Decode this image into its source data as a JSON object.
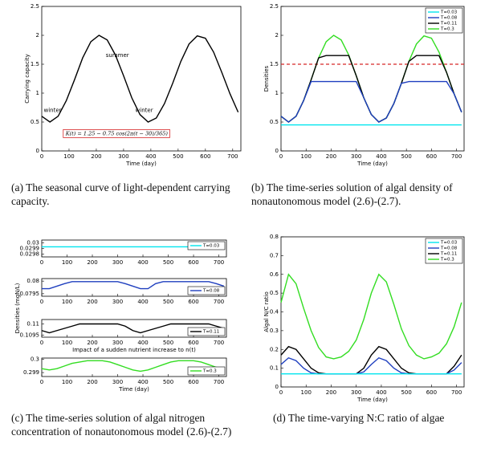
{
  "chart_data": [
    {
      "type": "line",
      "caption": "(a) The seasonal curve of light-dependent carrying capacity.",
      "xlabel": "Time (day)",
      "ylabel": "Carrying capacity",
      "xlim": [
        0,
        730
      ],
      "xticks": [
        0,
        100,
        200,
        300,
        400,
        500,
        600,
        700
      ],
      "ylim": [
        0,
        2.5
      ],
      "yticks": [
        0,
        0.5,
        1,
        1.5,
        2,
        2.5
      ],
      "annotations": [
        "summer",
        "winter",
        "winter",
        "K(t) = 1.25 − 0.75 cos(2π(t − 30)/365)"
      ],
      "x": [
        0,
        30,
        60,
        90,
        120,
        150,
        180,
        210,
        240,
        270,
        300,
        330,
        360,
        390,
        420,
        450,
        480,
        510,
        540,
        570,
        600,
        630,
        660,
        690,
        720
      ],
      "series": [
        {
          "name": "K(t)",
          "color": "#000000",
          "values": [
            0.6,
            0.5,
            0.6,
            0.87,
            1.23,
            1.61,
            1.89,
            2,
            1.92,
            1.66,
            1.3,
            0.92,
            0.63,
            0.5,
            0.57,
            0.82,
            1.17,
            1.55,
            1.85,
            1.99,
            1.95,
            1.71,
            1.36,
            0.99,
            0.67
          ]
        }
      ]
    },
    {
      "type": "line",
      "caption": "(b) The time-series solution of algal density of nonautonomous model (2.6)-(2.7).",
      "xlabel": "Time (day)",
      "ylabel": "Densities",
      "xlim": [
        0,
        730
      ],
      "xticks": [
        0,
        100,
        200,
        300,
        400,
        500,
        600,
        700
      ],
      "ylim": [
        0,
        2.5
      ],
      "yticks": [
        0,
        0.5,
        1,
        1.5,
        2,
        2.5
      ],
      "legend": "upper right",
      "reference_line": {
        "value": 1.5,
        "color": "#d62728"
      },
      "x": [
        0,
        30,
        60,
        90,
        120,
        150,
        180,
        210,
        240,
        270,
        300,
        330,
        360,
        390,
        420,
        450,
        480,
        510,
        540,
        570,
        600,
        630,
        660,
        690,
        720
      ],
      "series": [
        {
          "name": "T=0.03",
          "color": "#00e5ee",
          "values": [
            0.45,
            0.45,
            0.45,
            0.45,
            0.45,
            0.45,
            0.45,
            0.45,
            0.45,
            0.45,
            0.45,
            0.45,
            0.45,
            0.45,
            0.45,
            0.45,
            0.45,
            0.45,
            0.45,
            0.45,
            0.45,
            0.45,
            0.45,
            0.45,
            0.45
          ]
        },
        {
          "name": "T=0.08",
          "color": "#1f3fbf",
          "values": [
            0.6,
            0.5,
            0.6,
            0.87,
            1.2,
            1.2,
            1.2,
            1.2,
            1.2,
            1.2,
            1.2,
            0.92,
            0.63,
            0.5,
            0.57,
            0.82,
            1.17,
            1.2,
            1.2,
            1.2,
            1.2,
            1.2,
            1.2,
            0.99,
            0.67
          ]
        },
        {
          "name": "T=0.11",
          "color": "#000000",
          "values": [
            0.6,
            0.5,
            0.6,
            0.87,
            1.23,
            1.61,
            1.65,
            1.65,
            1.65,
            1.65,
            1.3,
            0.92,
            0.63,
            0.5,
            0.57,
            0.82,
            1.17,
            1.55,
            1.65,
            1.65,
            1.65,
            1.65,
            1.36,
            0.99,
            0.67
          ]
        },
        {
          "name": "T=0.3",
          "color": "#33dd22",
          "values": [
            0.6,
            0.5,
            0.6,
            0.87,
            1.23,
            1.61,
            1.89,
            2,
            1.92,
            1.66,
            1.3,
            0.92,
            0.63,
            0.5,
            0.57,
            0.82,
            1.17,
            1.55,
            1.85,
            1.99,
            1.95,
            1.71,
            1.36,
            0.99,
            0.67
          ]
        }
      ]
    },
    {
      "type": "line",
      "caption": "(c) The time-series solution of algal nitrogen concentration of nonautonomous model (2.6)-(2.7)",
      "ylabel": "Densities (mgN/L)",
      "subplots": [
        {
          "xlim": [
            0,
            730
          ],
          "xticks": [
            0,
            100,
            200,
            300,
            400,
            500,
            600,
            700
          ],
          "ylim": [
            0.02975,
            0.03005
          ],
          "yticks": [
            0.0298,
            0.0299,
            0.03
          ],
          "legend": "upper right",
          "x": [
            0,
            30,
            60,
            90,
            120,
            150,
            180,
            210,
            240,
            270,
            300,
            330,
            360,
            390,
            420,
            450,
            480,
            510,
            540,
            570,
            600,
            630,
            660,
            690,
            720
          ],
          "series": [
            {
              "name": "T=0.03",
              "color": "#00e5ee",
              "values": [
                0.02993,
                0.02993,
                0.02993,
                0.02993,
                0.02993,
                0.02993,
                0.02993,
                0.02993,
                0.02993,
                0.02993,
                0.02993,
                0.02993,
                0.02993,
                0.02993,
                0.02993,
                0.02993,
                0.02993,
                0.02993,
                0.02993,
                0.02993,
                0.02993,
                0.02993,
                0.02993,
                0.02993,
                0.02993
              ]
            }
          ]
        },
        {
          "xlim": [
            0,
            730
          ],
          "xticks": [
            0,
            100,
            200,
            300,
            400,
            500,
            600,
            700
          ],
          "ylim": [
            0.0794,
            0.0801
          ],
          "yticks": [
            0.0795,
            0.08
          ],
          "legend": "lower right",
          "x": [
            0,
            30,
            60,
            90,
            120,
            150,
            180,
            210,
            240,
            270,
            300,
            330,
            360,
            390,
            420,
            450,
            480,
            510,
            540,
            570,
            600,
            630,
            660,
            690,
            720
          ],
          "series": [
            {
              "name": "T=0.08",
              "color": "#1f3fbf",
              "values": [
                0.0797,
                0.0797,
                0.0798,
                0.0799,
                0.07998,
                0.07998,
                0.07998,
                0.07998,
                0.07998,
                0.07998,
                0.07998,
                0.0799,
                0.0798,
                0.0797,
                0.0797,
                0.0799,
                0.07998,
                0.07998,
                0.07998,
                0.07998,
                0.07998,
                0.07998,
                0.07998,
                0.0799,
                0.0798
              ]
            }
          ]
        },
        {
          "xlim": [
            0,
            730
          ],
          "xticks": [
            0,
            100,
            200,
            300,
            400,
            500,
            600,
            700
          ],
          "ylim": [
            0.1094,
            0.1102
          ],
          "yticks": [
            0.1095,
            0.11
          ],
          "legend": "lower right",
          "xlabel": "Impact of a sudden nutrient increase to n(t)",
          "x": [
            0,
            30,
            60,
            90,
            120,
            150,
            180,
            210,
            240,
            270,
            300,
            330,
            360,
            390,
            420,
            450,
            480,
            510,
            540,
            570,
            600,
            630,
            660,
            690,
            720
          ],
          "series": [
            {
              "name": "T=0.11",
              "color": "#000000",
              "values": [
                0.1097,
                0.1096,
                0.1097,
                0.1098,
                0.1099,
                0.11,
                0.11,
                0.11,
                0.11,
                0.11,
                0.11,
                0.1099,
                0.1097,
                0.1096,
                0.1097,
                0.1098,
                0.1099,
                0.11,
                0.11,
                0.11,
                0.11,
                0.11,
                0.11,
                0.1099,
                0.1098
              ]
            }
          ]
        },
        {
          "xlim": [
            0,
            730
          ],
          "xticks": [
            0,
            100,
            200,
            300,
            400,
            500,
            600,
            700
          ],
          "ylim": [
            0.2987,
            0.3001
          ],
          "yticks": [
            0.299,
            0.3
          ],
          "legend": "lower right",
          "xlabel": "Time (day)",
          "x": [
            0,
            30,
            60,
            90,
            120,
            150,
            180,
            210,
            240,
            270,
            300,
            330,
            360,
            390,
            420,
            450,
            480,
            510,
            540,
            570,
            600,
            630,
            660,
            690,
            720
          ],
          "series": [
            {
              "name": "T=0.3",
              "color": "#33dd22",
              "values": [
                0.2993,
                0.2992,
                0.2993,
                0.2995,
                0.2997,
                0.2998,
                0.2999,
                0.2999,
                0.2999,
                0.2998,
                0.2996,
                0.2994,
                0.2992,
                0.2991,
                0.2992,
                0.2994,
                0.2996,
                0.2998,
                0.2999,
                0.2999,
                0.2999,
                0.2998,
                0.2996,
                0.2994,
                0.2993
              ]
            }
          ]
        }
      ]
    },
    {
      "type": "line",
      "caption": "(d) The time-varying N:C ratio of algae",
      "xlabel": "Time (day)",
      "ylabel": "Algal N/C ratio",
      "xlim": [
        0,
        730
      ],
      "xticks": [
        0,
        100,
        200,
        300,
        400,
        500,
        600,
        700
      ],
      "ylim": [
        0,
        0.8
      ],
      "yticks": [
        0,
        0.1,
        0.2,
        0.3,
        0.4,
        0.5,
        0.6,
        0.7,
        0.8
      ],
      "legend": "upper right",
      "x": [
        0,
        30,
        60,
        90,
        120,
        150,
        180,
        210,
        240,
        270,
        300,
        330,
        360,
        390,
        420,
        450,
        480,
        510,
        540,
        570,
        600,
        630,
        660,
        690,
        720
      ],
      "series": [
        {
          "name": "T=0.03",
          "color": "#00e5ee",
          "values": [
            0.07,
            0.07,
            0.07,
            0.07,
            0.07,
            0.07,
            0.07,
            0.07,
            0.07,
            0.07,
            0.07,
            0.07,
            0.07,
            0.07,
            0.07,
            0.07,
            0.07,
            0.07,
            0.07,
            0.07,
            0.07,
            0.07,
            0.07,
            0.07,
            0.07
          ]
        },
        {
          "name": "T=0.08",
          "color": "#1f3fbf",
          "values": [
            0.12,
            0.155,
            0.14,
            0.1,
            0.075,
            0.07,
            0.07,
            0.07,
            0.07,
            0.07,
            0.07,
            0.08,
            0.12,
            0.155,
            0.14,
            0.1,
            0.075,
            0.07,
            0.07,
            0.07,
            0.07,
            0.07,
            0.07,
            0.09,
            0.13
          ]
        },
        {
          "name": "T=0.11",
          "color": "#000000",
          "values": [
            0.17,
            0.215,
            0.2,
            0.15,
            0.1,
            0.075,
            0.07,
            0.07,
            0.07,
            0.07,
            0.07,
            0.1,
            0.17,
            0.215,
            0.2,
            0.15,
            0.1,
            0.075,
            0.07,
            0.07,
            0.07,
            0.07,
            0.07,
            0.11,
            0.17
          ]
        },
        {
          "name": "T=0.3",
          "color": "#33dd22",
          "values": [
            0.45,
            0.6,
            0.55,
            0.42,
            0.3,
            0.21,
            0.16,
            0.15,
            0.16,
            0.19,
            0.25,
            0.36,
            0.5,
            0.6,
            0.56,
            0.44,
            0.31,
            0.22,
            0.17,
            0.15,
            0.16,
            0.18,
            0.23,
            0.32,
            0.45
          ]
        }
      ]
    }
  ]
}
